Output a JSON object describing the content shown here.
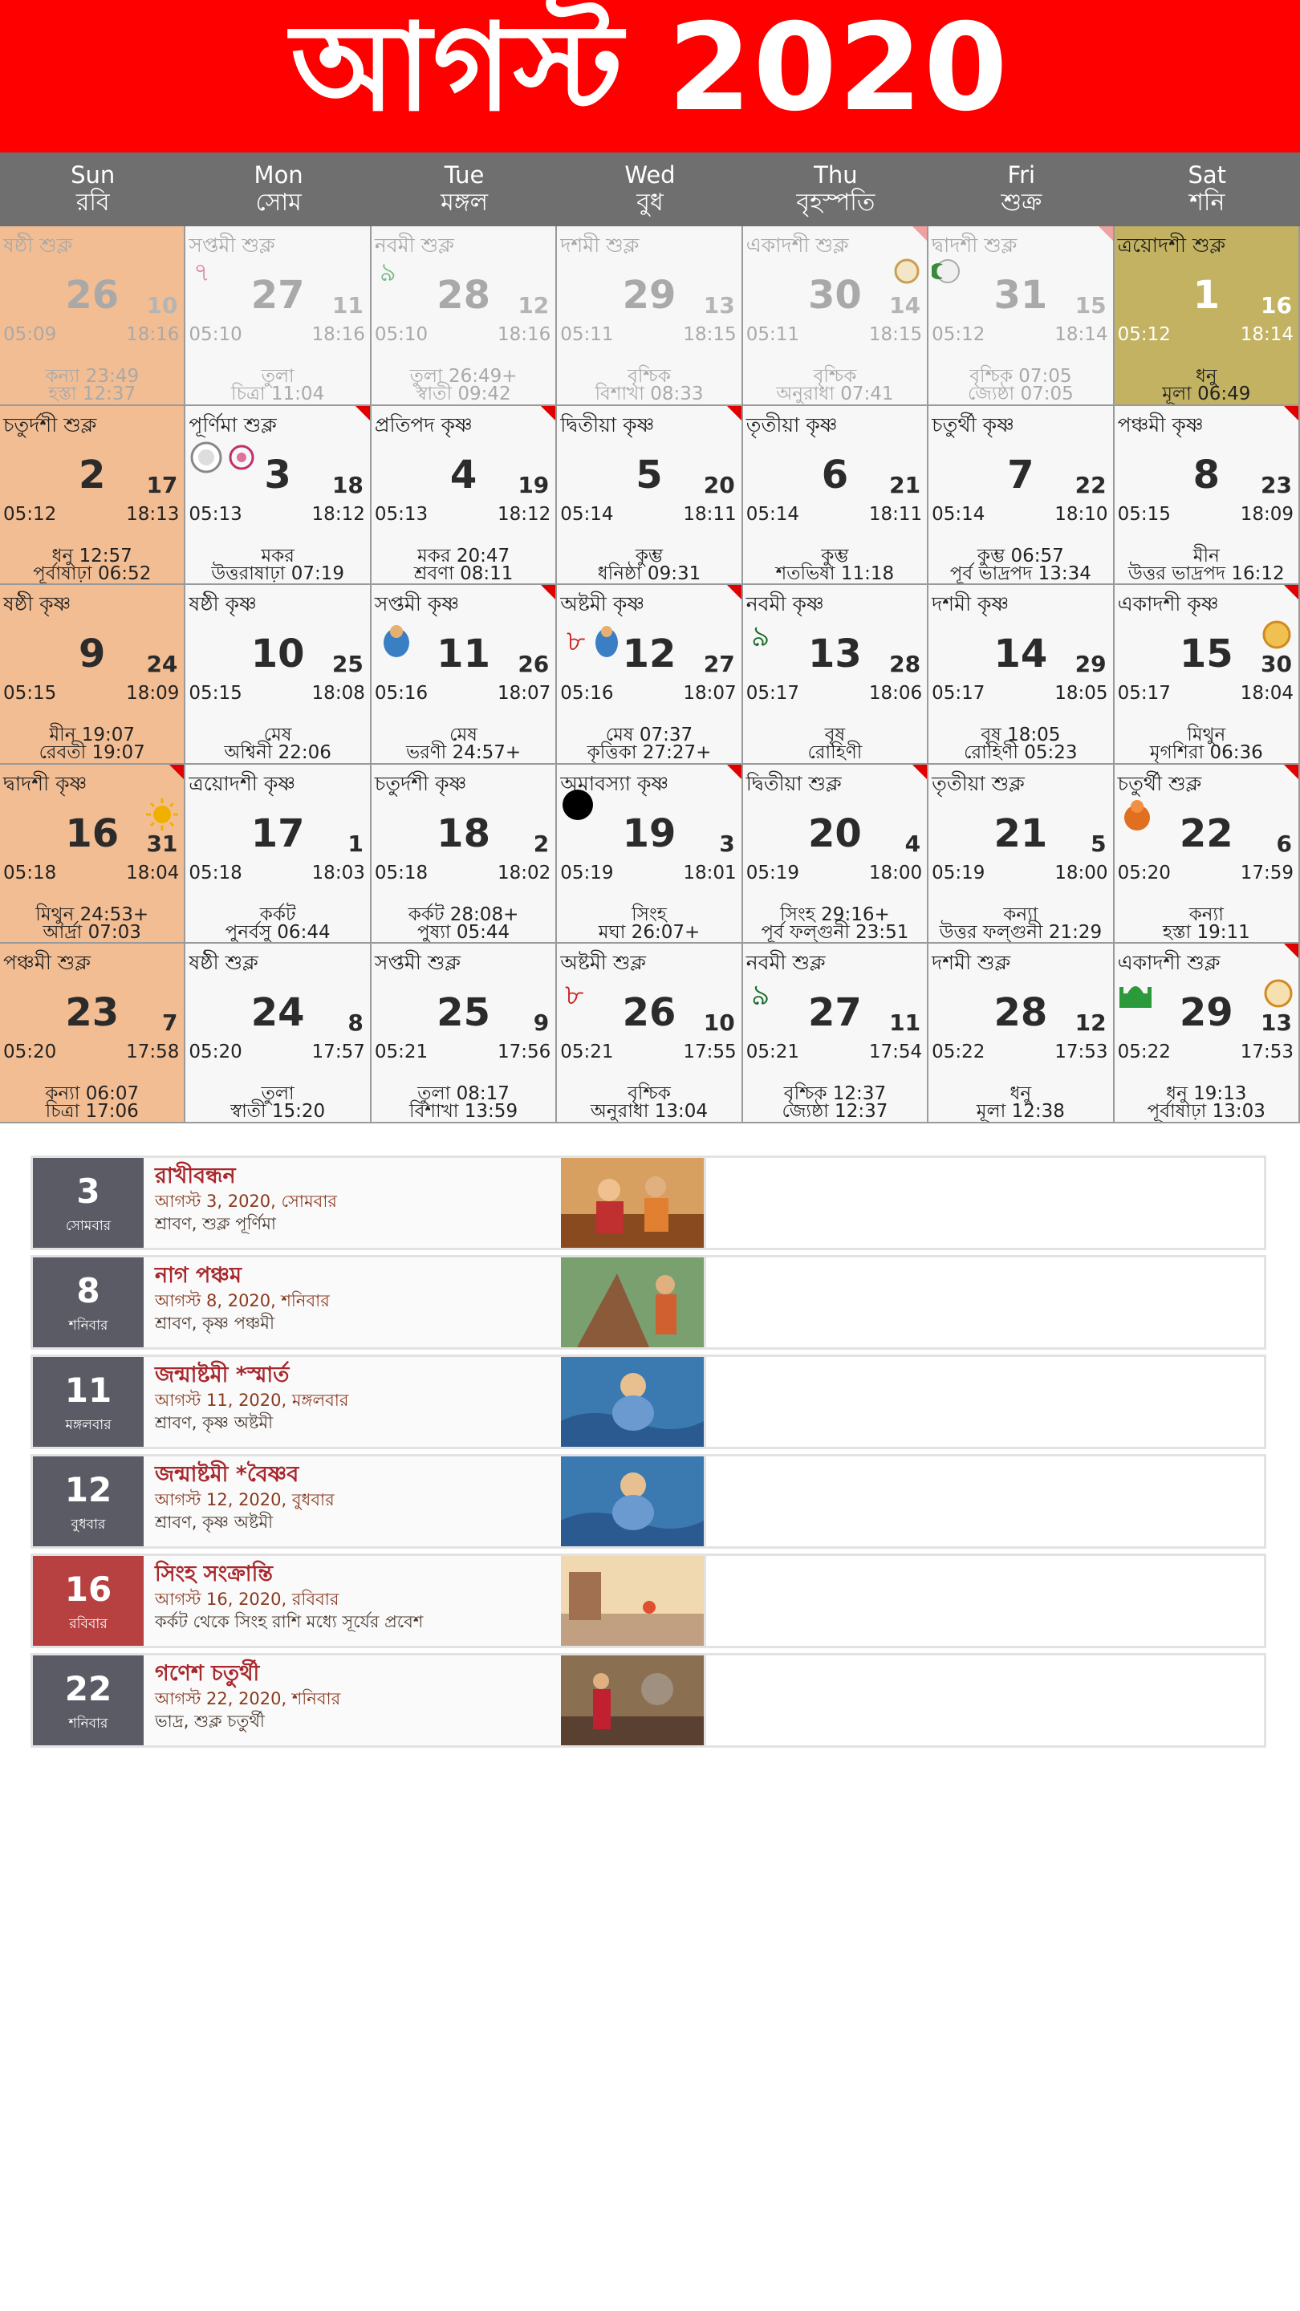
{
  "header": {
    "title": "আগস্ট 2020"
  },
  "days": [
    {
      "en": "Sun",
      "bn": "রবি"
    },
    {
      "en": "Mon",
      "bn": "সোম"
    },
    {
      "en": "Tue",
      "bn": "মঙ্গল"
    },
    {
      "en": "Wed",
      "bn": "বুধ"
    },
    {
      "en": "Thu",
      "bn": "বৃহস্পতি"
    },
    {
      "en": "Fri",
      "bn": "শুক্র"
    },
    {
      "en": "Sat",
      "bn": "শনি"
    }
  ],
  "cells": [
    {
      "tithi": "ষষ্ঠী শুক্ল",
      "day": "26",
      "bdate": "10",
      "rise": "05:09",
      "set": "18:16",
      "rashi": "কন্যা 23:49",
      "nak": "হস্তা 12:37",
      "muted": true,
      "sun": true
    },
    {
      "tithi": "সপ্তমী শুক্ল",
      "day": "27",
      "bdate": "11",
      "rise": "05:10",
      "set": "18:16",
      "rashi": "তুলা",
      "nak": "চিত্রা 11:04",
      "muted": true,
      "icon": "৭"
    },
    {
      "tithi": "নবমী শুক্ল",
      "day": "28",
      "bdate": "12",
      "rise": "05:10",
      "set": "18:16",
      "rashi": "তুলা 26:49+",
      "nak": "স্বাতী 09:42",
      "muted": true,
      "icon": "৭"
    },
    {
      "tithi": "দশমী শুক্ল",
      "day": "29",
      "bdate": "13",
      "rise": "05:11",
      "set": "18:15",
      "rashi": "বৃশ্চিক",
      "nak": "বিশাখা 08:33",
      "muted": true
    },
    {
      "tithi": "একাদশী শুক্ল",
      "day": "30",
      "bdate": "14",
      "rise": "05:11",
      "set": "18:15",
      "rashi": "বৃশ্চিক",
      "nak": "অনুরাধা 07:41",
      "muted": true,
      "corner": "pink"
    },
    {
      "tithi": "দ্বাদশী শুক্ল",
      "day": "31",
      "bdate": "15",
      "rise": "05:12",
      "set": "18:14",
      "rashi": "বৃশ্চিক 07:05",
      "nak": "জ্যেষ্ঠা 07:05",
      "muted": true,
      "corner": "pink"
    },
    {
      "tithi": "ত্রয়োদশী শুক্ল",
      "day": "1",
      "bdate": "16",
      "rise": "05:12",
      "set": "18:14",
      "rashi": "ধনু",
      "nak": "মূলা 06:49",
      "today": true
    },
    {
      "tithi": "চতুর্দশী শুক্ল",
      "day": "2",
      "bdate": "17",
      "rise": "05:12",
      "set": "18:13",
      "rashi": "ধনু 12:57",
      "nak": "পূর্বাষাঢ়া 06:52",
      "sun": true
    },
    {
      "tithi": "পূর্ণিমা শুক্ল",
      "day": "3",
      "bdate": "18",
      "rise": "05:13",
      "set": "18:12",
      "rashi": "মকর",
      "nak": "উত্তরাষাঢ়া 07:19",
      "corner": "red"
    },
    {
      "tithi": "প্রতিপদ কৃষ্ণ",
      "day": "4",
      "bdate": "19",
      "rise": "05:13",
      "set": "18:12",
      "rashi": "মকর 20:47",
      "nak": "শ্রবণা 08:11",
      "corner": "red"
    },
    {
      "tithi": "দ্বিতীয়া কৃষ্ণ",
      "day": "5",
      "bdate": "20",
      "rise": "05:14",
      "set": "18:11",
      "rashi": "কুম্ভ",
      "nak": "ধনিষ্ঠা 09:31",
      "corner": "red"
    },
    {
      "tithi": "তৃতীয়া কৃষ্ণ",
      "day": "6",
      "bdate": "21",
      "rise": "05:14",
      "set": "18:11",
      "rashi": "কুম্ভ",
      "nak": "শতভিষা 11:18"
    },
    {
      "tithi": "চতুর্থী কৃষ্ণ",
      "day": "7",
      "bdate": "22",
      "rise": "05:14",
      "set": "18:10",
      "rashi": "কুম্ভ 06:57",
      "nak": "পূর্ব ভাদ্রপদ 13:34"
    },
    {
      "tithi": "পঞ্চমী কৃষ্ণ",
      "day": "8",
      "bdate": "23",
      "rise": "05:15",
      "set": "18:09",
      "rashi": "মীন",
      "nak": "উত্তর ভাদ্রপদ 16:12",
      "corner": "red"
    },
    {
      "tithi": "ষষ্ঠী কৃষ্ণ",
      "day": "9",
      "bdate": "24",
      "rise": "05:15",
      "set": "18:09",
      "rashi": "মীন 19:07",
      "nak": "রেবতী 19:07",
      "sun": true
    },
    {
      "tithi": "ষষ্ঠী কৃষ্ণ",
      "day": "10",
      "bdate": "25",
      "rise": "05:15",
      "set": "18:08",
      "rashi": "মেষ",
      "nak": "অশ্বিনী 22:06"
    },
    {
      "tithi": "সপ্তমী কৃষ্ণ",
      "day": "11",
      "bdate": "26",
      "rise": "05:16",
      "set": "18:07",
      "rashi": "মেষ",
      "nak": "ভরণী 24:57+",
      "corner": "red"
    },
    {
      "tithi": "অষ্টমী কৃষ্ণ",
      "day": "12",
      "bdate": "27",
      "rise": "05:16",
      "set": "18:07",
      "rashi": "মেষ 07:37",
      "nak": "কৃত্তিকা 27:27+",
      "corner": "red",
      "icon": "৮"
    },
    {
      "tithi": "নবমী কৃষ্ণ",
      "day": "13",
      "bdate": "28",
      "rise": "05:17",
      "set": "18:06",
      "rashi": "বৃষ",
      "nak": "রোহিণী",
      "icon": "৯"
    },
    {
      "tithi": "দশমী কৃষ্ণ",
      "day": "14",
      "bdate": "29",
      "rise": "05:17",
      "set": "18:05",
      "rashi": "বৃষ 18:05",
      "nak": "রোহিণী 05:23"
    },
    {
      "tithi": "একাদশী কৃষ্ণ",
      "day": "15",
      "bdate": "30",
      "rise": "05:17",
      "set": "18:04",
      "rashi": "মিথুন",
      "nak": "মৃগশিরা 06:36",
      "corner": "red"
    },
    {
      "tithi": "দ্বাদশী কৃষ্ণ",
      "day": "16",
      "bdate": "31",
      "rise": "05:18",
      "set": "18:04",
      "rashi": "মিথুন 24:53+",
      "nak": "আর্দ্রা 07:03",
      "sun": true,
      "corner": "red"
    },
    {
      "tithi": "ত্রয়োদশী কৃষ্ণ",
      "day": "17",
      "bdate": "1",
      "rise": "05:18",
      "set": "18:03",
      "rashi": "কর্কট",
      "nak": "পুনর্বসু 06:44"
    },
    {
      "tithi": "চতুর্দশী কৃষ্ণ",
      "day": "18",
      "bdate": "2",
      "rise": "05:18",
      "set": "18:02",
      "rashi": "কর্কট 28:08+",
      "nak": "পুষ্যা 05:44"
    },
    {
      "tithi": "অমাবস্যা কৃষ্ণ",
      "day": "19",
      "bdate": "3",
      "rise": "05:19",
      "set": "18:01",
      "rashi": "সিংহ",
      "nak": "মঘা 26:07+",
      "corner": "red"
    },
    {
      "tithi": "দ্বিতীয়া শুক্ল",
      "day": "20",
      "bdate": "4",
      "rise": "05:19",
      "set": "18:00",
      "rashi": "সিংহ 29:16+",
      "nak": "পূর্ব ফল্গুনী 23:51",
      "corner": "red"
    },
    {
      "tithi": "তৃতীয়া শুক্ল",
      "day": "21",
      "bdate": "5",
      "rise": "05:19",
      "set": "18:00",
      "rashi": "কন্যা",
      "nak": "উত্তর ফল্গুনী 21:29"
    },
    {
      "tithi": "চতুর্থী শুক্ল",
      "day": "22",
      "bdate": "6",
      "rise": "05:20",
      "set": "17:59",
      "rashi": "কন্যা",
      "nak": "হস্তা 19:11",
      "corner": "red"
    },
    {
      "tithi": "পঞ্চমী শুক্ল",
      "day": "23",
      "bdate": "7",
      "rise": "05:20",
      "set": "17:58",
      "rashi": "কন্যা 06:07",
      "nak": "চিত্রা 17:06",
      "sun": true
    },
    {
      "tithi": "ষষ্ঠী শুক্ল",
      "day": "24",
      "bdate": "8",
      "rise": "05:20",
      "set": "17:57",
      "rashi": "তুলা",
      "nak": "স্বাতী 15:20"
    },
    {
      "tithi": "সপ্তমী শুক্ল",
      "day": "25",
      "bdate": "9",
      "rise": "05:21",
      "set": "17:56",
      "rashi": "তুলা 08:17",
      "nak": "বিশাখা 13:59"
    },
    {
      "tithi": "অষ্টমী শুক্ল",
      "day": "26",
      "bdate": "10",
      "rise": "05:21",
      "set": "17:55",
      "rashi": "বৃশ্চিক",
      "nak": "অনুরাধা 13:04",
      "icon": "৮"
    },
    {
      "tithi": "নবমী শুক্ল",
      "day": "27",
      "bdate": "11",
      "rise": "05:21",
      "set": "17:54",
      "rashi": "বৃশ্চিক 12:37",
      "nak": "জ্যেষ্ঠা 12:37",
      "icon": "৯"
    },
    {
      "tithi": "দশমী শুক্ল",
      "day": "28",
      "bdate": "12",
      "rise": "05:22",
      "set": "17:53",
      "rashi": "ধনু",
      "nak": "মূলা 12:38"
    },
    {
      "tithi": "একাদশী শুক্ল",
      "day": "29",
      "bdate": "13",
      "rise": "05:22",
      "set": "17:53",
      "rashi": "ধনু 19:13",
      "nak": "পূর্বাষাঢ়া 13:03",
      "corner": "red"
    }
  ],
  "events": [
    {
      "num": "3",
      "wd": "সোমবার",
      "title": "রাখীবন্ধন",
      "sub": "আগস্ট 3, 2020, সোমবার",
      "sub2": "শ্রাবণ, শুক্ল পূর্ণিমা",
      "red": false
    },
    {
      "num": "8",
      "wd": "শনিবার",
      "title": "নাগ পঞ্চম",
      "sub": "আগস্ট 8, 2020, শনিবার",
      "sub2": "শ্রাবণ, কৃষ্ণ পঞ্চমী",
      "red": false
    },
    {
      "num": "11",
      "wd": "মঙ্গলবার",
      "title": "জন্মাষ্টমী *স্মার্ত",
      "sub": "আগস্ট 11, 2020, মঙ্গলবার",
      "sub2": "শ্রাবণ, কৃষ্ণ অষ্টমী",
      "red": false
    },
    {
      "num": "12",
      "wd": "বুধবার",
      "title": "জন্মাষ্টমী *বৈষ্ণব",
      "sub": "আগস্ট 12, 2020, বুধবার",
      "sub2": "শ্রাবণ, কৃষ্ণ অষ্টমী",
      "red": false
    },
    {
      "num": "16",
      "wd": "রবিবার",
      "title": "সিংহ সংক্রান্তি",
      "sub": "আগস্ট 16, 2020, রবিবার",
      "sub2": "কর্কট থেকে সিংহ রাশি মধ্যে সূর্যের প্রবেশ",
      "red": true
    },
    {
      "num": "22",
      "wd": "শনিবার",
      "title": "গণেশ চতুর্থী",
      "sub": "আগস্ট 22, 2020, শনিবার",
      "sub2": "ভাদ্র, শুক্ল চতুর্থী",
      "red": false
    }
  ],
  "colors": {
    "header": "#ff0000",
    "dayrow": "#6f6f6f",
    "sunday": "#f2bd93",
    "today": "#c2b262",
    "event_title": "#a8282d"
  }
}
